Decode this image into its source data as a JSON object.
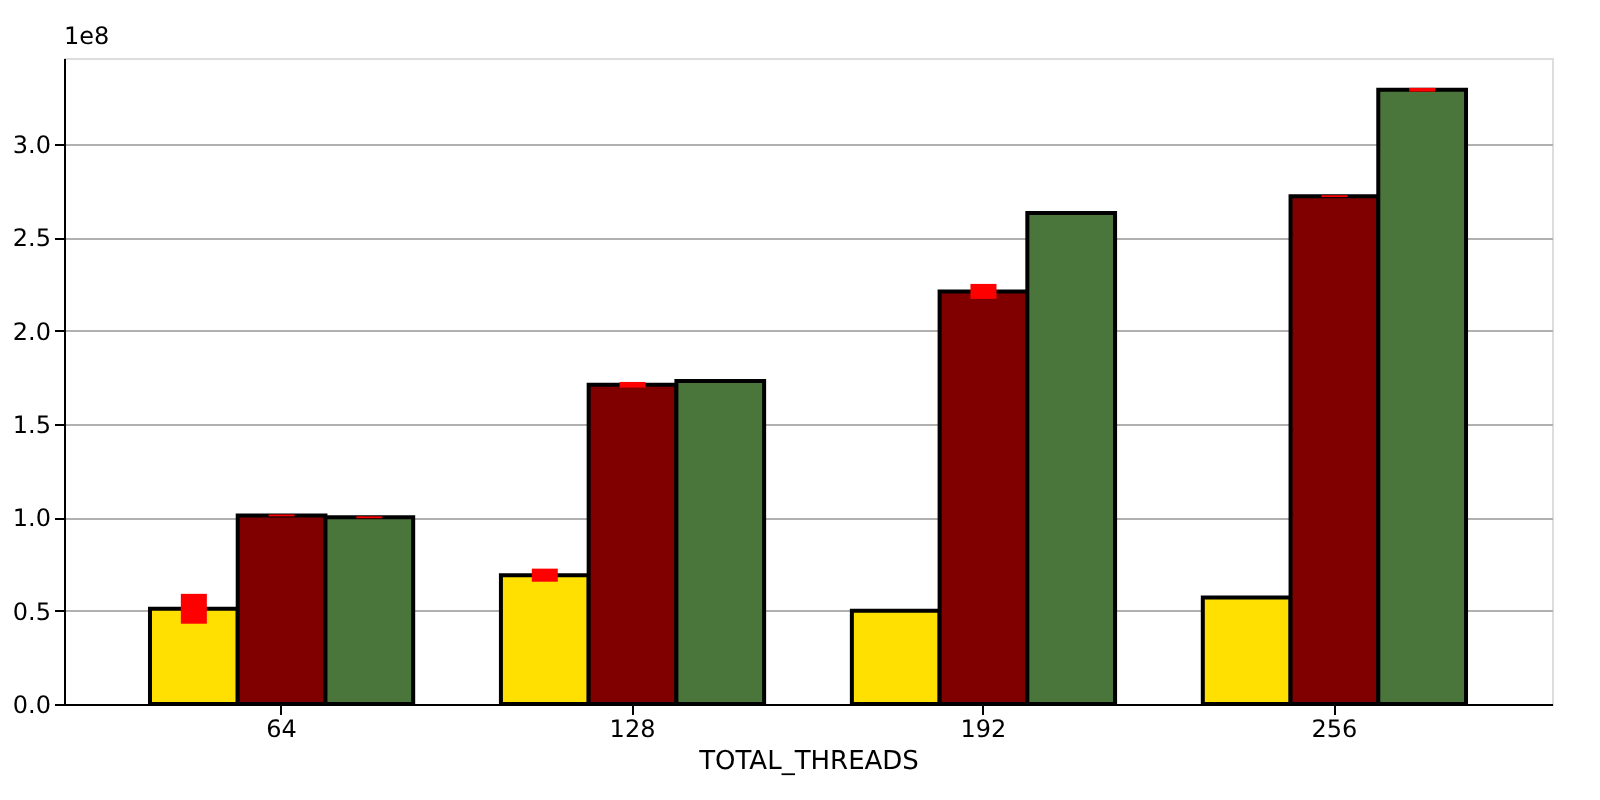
{
  "chart_data": {
    "type": "bar",
    "xlabel": "TOTAL_THREADS",
    "categories": [
      "64",
      "128",
      "192",
      "256"
    ],
    "series": [
      {
        "color": "#ffe000",
        "values": [
          0.51,
          0.69,
          0.5,
          0.57
        ],
        "errors": [
          0.08,
          0.035,
          null,
          null
        ]
      },
      {
        "color": "#800000",
        "values": [
          1.01,
          1.71,
          2.21,
          2.72
        ],
        "errors": [
          0.005,
          0.015,
          0.04,
          0.005
        ]
      },
      {
        "color": "#4a763c",
        "values": [
          1.0,
          1.73,
          2.63,
          3.29
        ],
        "errors": [
          0.005,
          null,
          null,
          0.01
        ]
      }
    ],
    "ylim": [
      0,
      3.46
    ],
    "yticks": [
      {
        "value": 0,
        "label": "0.0"
      },
      0.5,
      {
        "value": 1,
        "label": "1.0"
      },
      1.5,
      {
        "value": 2,
        "label": "2.0"
      },
      2.5,
      {
        "value": 3,
        "label": "3.0"
      }
    ],
    "grid": "y",
    "annotations": [
      "1e8"
    ]
  }
}
